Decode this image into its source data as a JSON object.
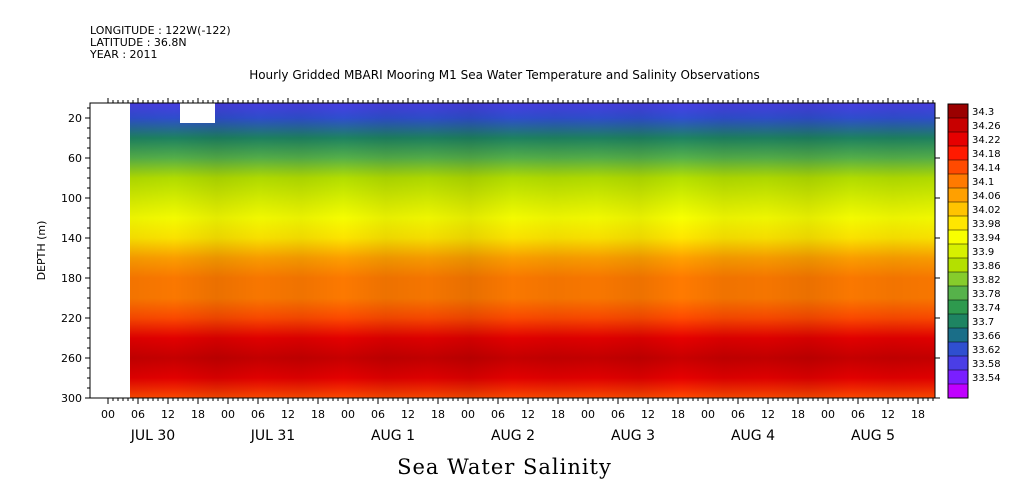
{
  "header": {
    "longitude": "LONGITUDE : 122W(-122)",
    "latitude": "LATITUDE : 36.8N",
    "year": "YEAR : 2011"
  },
  "chart_data": {
    "type": "heatmap",
    "title": "Hourly Gridded MBARI Mooring M1 Sea Water Temperature and Salinity Observations",
    "variable_label": "Sea Water Salinity",
    "ylabel": "DEPTH (m)",
    "ylim": [
      300,
      5
    ],
    "y_ticks": [
      20,
      60,
      100,
      140,
      180,
      220,
      260,
      300
    ],
    "x_hour_ticks": [
      "00",
      "06",
      "12",
      "18",
      "00",
      "06",
      "12",
      "18",
      "00",
      "06",
      "12",
      "18",
      "00",
      "06",
      "12",
      "18",
      "00",
      "06",
      "12",
      "18",
      "00",
      "06",
      "12",
      "18",
      "00",
      "06",
      "12",
      "18"
    ],
    "x_day_labels": [
      "JUL 30",
      "JUL 31",
      "AUG  1",
      "AUG  2",
      "AUG  3",
      "AUG  4",
      "AUG  5"
    ],
    "colorbar_levels": [
      "34.3",
      "34.26",
      "34.22",
      "34.18",
      "34.14",
      "34.1",
      "34.06",
      "34.02",
      "33.98",
      "33.94",
      "33.9",
      "33.86",
      "33.82",
      "33.78",
      "33.74",
      "33.7",
      "33.66",
      "33.62",
      "33.58",
      "33.54"
    ],
    "colorbar_colors": [
      "#9b0000",
      "#c80000",
      "#e60000",
      "#ff1a00",
      "#ff4a00",
      "#ff7a00",
      "#ffa000",
      "#ffc400",
      "#ffe600",
      "#f8ff00",
      "#d7f000",
      "#b4e000",
      "#86cc2c",
      "#56b24a",
      "#2e9a4e",
      "#1e8462",
      "#1a6e88",
      "#2f4fd0",
      "#4a3ee6",
      "#7a1fff",
      "#c000ff"
    ],
    "depth_profile": [
      {
        "depth": 5,
        "salinity": 33.6
      },
      {
        "depth": 20,
        "salinity": 33.63
      },
      {
        "depth": 40,
        "salinity": 33.7
      },
      {
        "depth": 60,
        "salinity": 33.78
      },
      {
        "depth": 80,
        "salinity": 33.86
      },
      {
        "depth": 100,
        "salinity": 33.9
      },
      {
        "depth": 120,
        "salinity": 33.95
      },
      {
        "depth": 140,
        "salinity": 34.0
      },
      {
        "depth": 160,
        "salinity": 34.06
      },
      {
        "depth": 180,
        "salinity": 34.1
      },
      {
        "depth": 200,
        "salinity": 34.12
      },
      {
        "depth": 220,
        "salinity": 34.16
      },
      {
        "depth": 240,
        "salinity": 34.22
      },
      {
        "depth": 260,
        "salinity": 34.26
      },
      {
        "depth": 280,
        "salinity": 34.22
      },
      {
        "depth": 300,
        "salinity": 34.17
      }
    ],
    "missing_data": [
      {
        "from_hour": 0,
        "to_hour": 2,
        "depth_from": 5,
        "depth_to": 300
      },
      {
        "from_hour": 12,
        "to_hour": 19,
        "depth_from": 5,
        "depth_to": 25
      }
    ]
  }
}
